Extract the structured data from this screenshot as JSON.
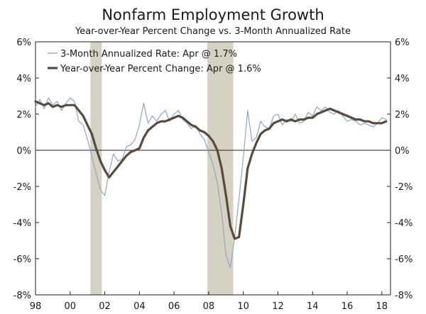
{
  "chart_data": {
    "type": "line",
    "title": "Nonfarm Employment Growth",
    "subtitle": "Year-over-Year Percent Change vs. 3-Month Annualized Rate",
    "xlabel": "",
    "ylabel": "",
    "xlim": [
      1998.0,
      2018.5
    ],
    "ylim": [
      -8,
      6
    ],
    "y_ticks": [
      "6%",
      "4%",
      "2%",
      "0%",
      "-2%",
      "-4%",
      "-6%",
      "-8%"
    ],
    "y_tick_values": [
      6,
      4,
      2,
      0,
      -2,
      -4,
      -6,
      -8
    ],
    "x_ticks": [
      "98",
      "00",
      "02",
      "04",
      "06",
      "08",
      "10",
      "12",
      "14",
      "16",
      "18"
    ],
    "x_tick_values": [
      1998,
      2000,
      2002,
      2004,
      2006,
      2008,
      2010,
      2012,
      2014,
      2016,
      2018
    ],
    "grid": false,
    "legend_position": "top-left",
    "recessions": [
      [
        2001.17,
        2001.83
      ],
      [
        2007.92,
        2009.42
      ]
    ],
    "series": [
      {
        "name": "3-Month Annualized Rate: Apr @ 1.7%",
        "color": "#8ea6bf",
        "style": "thin",
        "x": [
          1998.0,
          1998.25,
          1998.5,
          1998.75,
          1999.0,
          1999.25,
          1999.5,
          1999.75,
          2000.0,
          2000.25,
          2000.5,
          2000.75,
          2001.0,
          2001.25,
          2001.5,
          2001.75,
          2002.0,
          2002.25,
          2002.5,
          2002.75,
          2003.0,
          2003.25,
          2003.5,
          2003.75,
          2004.0,
          2004.25,
          2004.5,
          2004.75,
          2005.0,
          2005.25,
          2005.5,
          2005.75,
          2006.0,
          2006.25,
          2006.5,
          2006.75,
          2007.0,
          2007.25,
          2007.5,
          2007.75,
          2008.0,
          2008.25,
          2008.5,
          2008.75,
          2009.0,
          2009.25,
          2009.5,
          2009.75,
          2010.0,
          2010.25,
          2010.5,
          2010.75,
          2011.0,
          2011.25,
          2011.5,
          2011.75,
          2012.0,
          2012.25,
          2012.5,
          2012.75,
          2013.0,
          2013.25,
          2013.5,
          2013.75,
          2014.0,
          2014.25,
          2014.5,
          2014.75,
          2015.0,
          2015.25,
          2015.5,
          2015.75,
          2016.0,
          2016.25,
          2016.5,
          2016.75,
          2017.0,
          2017.25,
          2017.5,
          2017.75,
          2018.0,
          2018.25
        ],
        "values": [
          2.4,
          2.8,
          2.3,
          2.9,
          2.5,
          2.7,
          2.2,
          2.6,
          2.9,
          2.7,
          1.6,
          1.4,
          0.6,
          -0.3,
          -1.3,
          -2.2,
          -2.5,
          -1.2,
          -0.2,
          -0.6,
          -0.5,
          0.2,
          0.3,
          0.6,
          1.4,
          2.6,
          1.5,
          1.9,
          1.6,
          2.0,
          2.2,
          1.6,
          2.0,
          2.2,
          1.7,
          1.5,
          1.2,
          1.4,
          0.9,
          0.6,
          -0.1,
          -0.8,
          -1.8,
          -3.5,
          -5.8,
          -6.5,
          -4.8,
          -2.7,
          -0.4,
          2.2,
          0.5,
          0.7,
          1.6,
          1.3,
          1.2,
          1.9,
          2.0,
          1.4,
          1.7,
          1.6,
          2.0,
          1.5,
          1.6,
          2.1,
          1.9,
          2.4,
          2.2,
          2.4,
          2.1,
          2.0,
          2.2,
          1.9,
          1.6,
          1.7,
          1.6,
          1.4,
          1.5,
          1.4,
          1.3,
          1.5,
          1.8,
          1.7
        ]
      },
      {
        "name": "Year-over-Year Percent Change: Apr @ 1.6%",
        "color": "#574a3e",
        "style": "thick",
        "x": [
          1998.0,
          1998.25,
          1998.5,
          1998.75,
          1999.0,
          1999.25,
          1999.5,
          1999.75,
          2000.0,
          2000.25,
          2000.5,
          2000.75,
          2001.0,
          2001.25,
          2001.5,
          2001.75,
          2002.0,
          2002.25,
          2002.5,
          2002.75,
          2003.0,
          2003.25,
          2003.5,
          2003.75,
          2004.0,
          2004.25,
          2004.5,
          2004.75,
          2005.0,
          2005.25,
          2005.5,
          2005.75,
          2006.0,
          2006.25,
          2006.5,
          2006.75,
          2007.0,
          2007.25,
          2007.5,
          2007.75,
          2008.0,
          2008.25,
          2008.5,
          2008.75,
          2009.0,
          2009.25,
          2009.5,
          2009.75,
          2010.0,
          2010.25,
          2010.5,
          2010.75,
          2011.0,
          2011.25,
          2011.5,
          2011.75,
          2012.0,
          2012.25,
          2012.5,
          2012.75,
          2013.0,
          2013.25,
          2013.5,
          2013.75,
          2014.0,
          2014.25,
          2014.5,
          2014.75,
          2015.0,
          2015.25,
          2015.5,
          2015.75,
          2016.0,
          2016.25,
          2016.5,
          2016.75,
          2017.0,
          2017.25,
          2017.5,
          2017.75,
          2018.0,
          2018.25
        ],
        "values": [
          2.7,
          2.6,
          2.5,
          2.6,
          2.4,
          2.5,
          2.4,
          2.5,
          2.5,
          2.5,
          2.2,
          1.9,
          1.4,
          0.9,
          0.1,
          -0.6,
          -1.1,
          -1.5,
          -1.2,
          -0.9,
          -0.6,
          -0.3,
          -0.1,
          0.0,
          0.1,
          0.7,
          1.1,
          1.3,
          1.5,
          1.6,
          1.6,
          1.7,
          1.8,
          1.9,
          1.8,
          1.6,
          1.4,
          1.3,
          1.1,
          1.0,
          0.8,
          0.5,
          0.0,
          -1.0,
          -2.5,
          -4.2,
          -4.9,
          -4.8,
          -3.0,
          -1.0,
          -0.2,
          0.4,
          0.9,
          1.1,
          1.2,
          1.5,
          1.6,
          1.7,
          1.6,
          1.7,
          1.6,
          1.7,
          1.7,
          1.8,
          1.8,
          2.0,
          2.1,
          2.2,
          2.3,
          2.2,
          2.1,
          2.0,
          1.9,
          1.8,
          1.7,
          1.7,
          1.6,
          1.6,
          1.5,
          1.5,
          1.5,
          1.6
        ]
      }
    ]
  }
}
